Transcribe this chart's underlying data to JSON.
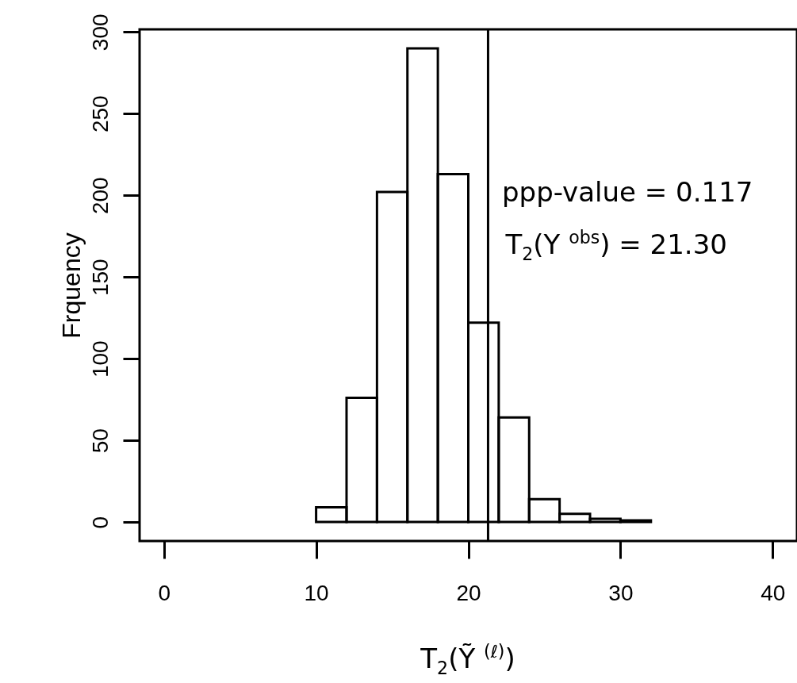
{
  "chart_data": {
    "type": "histogram",
    "xlabel": "T$_{2}$(Ỹ $^{(ℓ)}$)",
    "ylabel": "Frquency",
    "bins": [
      10,
      12,
      14,
      16,
      18,
      20,
      22,
      24,
      26,
      28,
      30,
      32
    ],
    "values": [
      9,
      76,
      202,
      290,
      213,
      122,
      64,
      14,
      5,
      2,
      1
    ],
    "color": "#000000",
    "xlim": [
      -1.6,
      41.6
    ],
    "xticks": [
      0,
      10,
      20,
      30,
      40
    ],
    "ylim": [
      -11.6,
      301.6
    ],
    "yticks": [
      0,
      50,
      100,
      150,
      200,
      250,
      300
    ],
    "grid": false,
    "ref_lines": [
      {
        "axis": "x",
        "value": 21.3,
        "label": "T$_{2}$(Y $^{obs}$) =  21.30",
        "color": "#000000"
      }
    ],
    "annotations": [
      "ppp-value =  0.117"
    ]
  }
}
